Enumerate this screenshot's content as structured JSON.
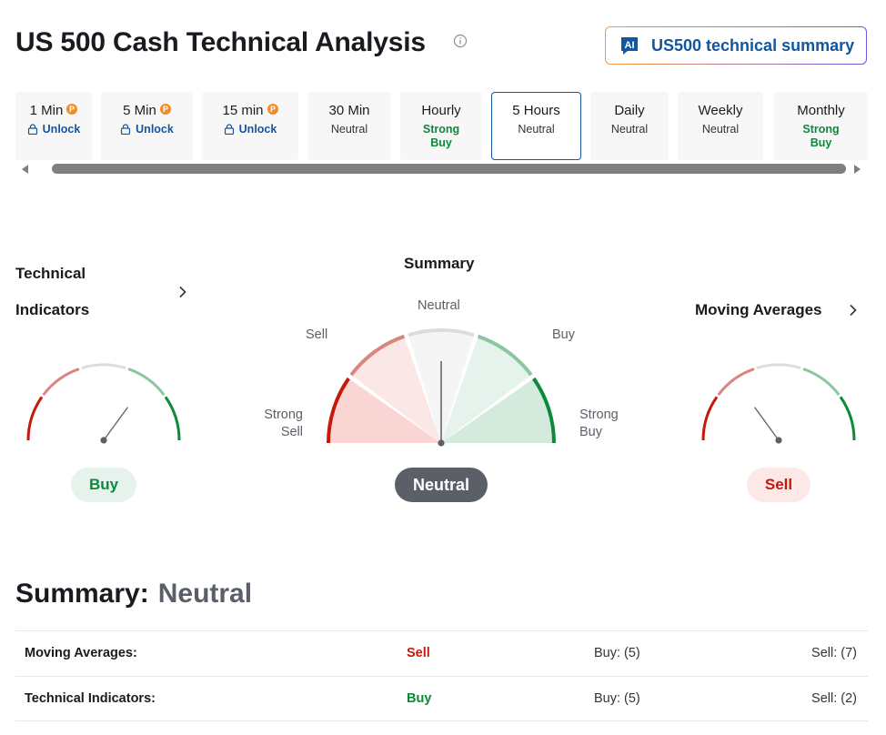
{
  "header": {
    "title": "US 500 Cash Technical Analysis",
    "ai_button": {
      "badge": "AI",
      "label": "US500 technical summary"
    }
  },
  "timeframes": [
    {
      "name": "1 Min",
      "pro": true,
      "unlock": "Unlock"
    },
    {
      "name": "5 Min",
      "pro": true,
      "unlock": "Unlock"
    },
    {
      "name": "15 min",
      "pro": true,
      "unlock": "Unlock"
    },
    {
      "name": "30 Min",
      "signal": "Neutral"
    },
    {
      "name": "Hourly",
      "signal_line1": "Strong",
      "signal_line2": "Buy"
    },
    {
      "name": "5 Hours",
      "signal": "Neutral",
      "active": true
    },
    {
      "name": "Daily",
      "signal": "Neutral"
    },
    {
      "name": "Weekly",
      "signal": "Neutral"
    },
    {
      "name": "Monthly",
      "signal_line1": "Strong",
      "signal_line2": "Buy"
    }
  ],
  "gauges": {
    "technical": {
      "title_line1": "Technical",
      "title_line2": "Indicators",
      "result": "Buy",
      "needle_position": 0.7
    },
    "summary": {
      "title": "Summary",
      "labels": {
        "strong_sell_1": "Strong",
        "strong_sell_2": "Sell",
        "sell": "Sell",
        "neutral": "Neutral",
        "buy": "Buy",
        "strong_buy_1": "Strong",
        "strong_buy_2": "Buy"
      },
      "result": "Neutral",
      "needle_position": 0.5
    },
    "moving_averages": {
      "title": "Moving Averages",
      "result": "Sell",
      "needle_position": 0.3
    }
  },
  "summary": {
    "heading": "Summary:",
    "value": "Neutral",
    "rows": [
      {
        "label": "Moving Averages:",
        "signal": "Sell",
        "buy": "Buy: (5)",
        "sell": "Sell: (7)"
      },
      {
        "label": "Technical Indicators:",
        "signal": "Buy",
        "buy": "Buy: (5)",
        "sell": "Sell: (2)"
      }
    ]
  },
  "colors": {
    "strong_sell": "#c4190b",
    "sell": "#d9867f",
    "neutral": "#dcdcdc",
    "buy": "#8ac7a0",
    "strong_buy": "#0b8a3a",
    "link": "#1256a0",
    "pro_badge": "#f28c28"
  }
}
